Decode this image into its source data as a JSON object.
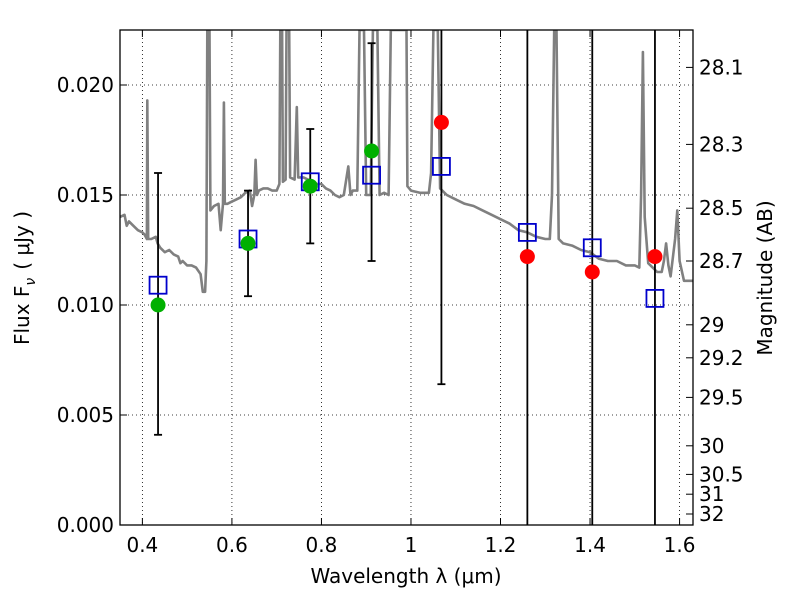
{
  "chart_data": {
    "type": "scatter",
    "xlabel": "Wavelength  λ (μm)",
    "ylabel": "Flux  F",
    "ylabel_sub": "ν",
    "ylabel_unit": "( μJy )",
    "ylabel_right": "Magnitude (AB)",
    "xlim": [
      0.35,
      1.63
    ],
    "ylim": [
      0.0,
      0.0225
    ],
    "grid": true,
    "x_ticks": [
      0.4,
      0.6,
      0.8,
      1.0,
      1.2,
      1.4,
      1.6
    ],
    "x_tick_labels": [
      "0.4",
      "0.6",
      "0.8",
      "1",
      "1.2",
      "1.4",
      "1.6"
    ],
    "y_ticks": [
      0.0,
      0.005,
      0.01,
      0.015,
      0.02
    ],
    "y_tick_labels": [
      "0.000",
      "0.005",
      "0.010",
      "0.015",
      "0.020"
    ],
    "right_ticks": [
      {
        "label": "28.1",
        "flux": 0.0208
      },
      {
        "label": "28.3",
        "flux": 0.0173
      },
      {
        "label": "28.5",
        "flux": 0.0144
      },
      {
        "label": "28.7",
        "flux": 0.012
      },
      {
        "label": "29",
        "flux": 0.0091
      },
      {
        "label": "29.2",
        "flux": 0.0076
      },
      {
        "label": "29.5",
        "flux": 0.0058
      },
      {
        "label": "30",
        "flux": 0.0036
      },
      {
        "label": "30.5",
        "flux": 0.0023
      },
      {
        "label": "31",
        "flux": 0.0014
      },
      {
        "label": "32",
        "flux": 0.0005
      }
    ],
    "series": [
      {
        "kind": "spectrum",
        "color": "#808080",
        "points": [
          [
            0.35,
            0.014
          ],
          [
            0.36,
            0.0141
          ],
          [
            0.365,
            0.0136
          ],
          [
            0.37,
            0.0138
          ],
          [
            0.38,
            0.0136
          ],
          [
            0.39,
            0.0134
          ],
          [
            0.4,
            0.0133
          ],
          [
            0.405,
            0.0132
          ],
          [
            0.41,
            0.013
          ],
          [
            0.411,
            0.0193
          ],
          [
            0.413,
            0.013
          ],
          [
            0.42,
            0.013
          ],
          [
            0.43,
            0.0131
          ],
          [
            0.434,
            0.0128
          ],
          [
            0.44,
            0.0126
          ],
          [
            0.45,
            0.0124
          ],
          [
            0.46,
            0.0125
          ],
          [
            0.47,
            0.0123
          ],
          [
            0.48,
            0.0122
          ],
          [
            0.485,
            0.0119
          ],
          [
            0.49,
            0.012
          ],
          [
            0.5,
            0.0118
          ],
          [
            0.51,
            0.0118
          ],
          [
            0.52,
            0.0117
          ],
          [
            0.53,
            0.0114
          ],
          [
            0.535,
            0.0106
          ],
          [
            0.54,
            0.0106
          ],
          [
            0.543,
            0.012
          ],
          [
            0.545,
            0.0225
          ],
          [
            0.55,
            0.0225
          ],
          [
            0.552,
            0.0143
          ],
          [
            0.56,
            0.0145
          ],
          [
            0.57,
            0.0146
          ],
          [
            0.575,
            0.0134
          ],
          [
            0.58,
            0.0146
          ],
          [
            0.582,
            0.0192
          ],
          [
            0.584,
            0.0146
          ],
          [
            0.59,
            0.0146
          ],
          [
            0.6,
            0.0147
          ],
          [
            0.61,
            0.0148
          ],
          [
            0.62,
            0.0149
          ],
          [
            0.63,
            0.0151
          ],
          [
            0.64,
            0.0152
          ],
          [
            0.645,
            0.0145
          ],
          [
            0.65,
            0.015
          ],
          [
            0.653,
            0.0166
          ],
          [
            0.656,
            0.015
          ],
          [
            0.66,
            0.0152
          ],
          [
            0.67,
            0.0153
          ],
          [
            0.68,
            0.0153
          ],
          [
            0.69,
            0.0152
          ],
          [
            0.7,
            0.0152
          ],
          [
            0.706,
            0.0155
          ],
          [
            0.708,
            0.0225
          ],
          [
            0.712,
            0.0225
          ],
          [
            0.714,
            0.0156
          ],
          [
            0.72,
            0.0157
          ],
          [
            0.722,
            0.0225
          ],
          [
            0.728,
            0.0225
          ],
          [
            0.73,
            0.0158
          ],
          [
            0.74,
            0.0157
          ],
          [
            0.745,
            0.019
          ],
          [
            0.748,
            0.0158
          ],
          [
            0.76,
            0.0158
          ],
          [
            0.77,
            0.0157
          ],
          [
            0.78,
            0.0156
          ],
          [
            0.79,
            0.0155
          ],
          [
            0.8,
            0.0155
          ],
          [
            0.81,
            0.0153
          ],
          [
            0.82,
            0.0152
          ],
          [
            0.83,
            0.015
          ],
          [
            0.84,
            0.0149
          ],
          [
            0.85,
            0.015
          ],
          [
            0.86,
            0.0163
          ],
          [
            0.865,
            0.015
          ],
          [
            0.87,
            0.0152
          ],
          [
            0.88,
            0.0152
          ],
          [
            0.885,
            0.0225
          ],
          [
            0.895,
            0.0225
          ],
          [
            0.9,
            0.015
          ],
          [
            0.91,
            0.015
          ],
          [
            0.915,
            0.0225
          ],
          [
            0.925,
            0.0225
          ],
          [
            0.93,
            0.015
          ],
          [
            0.94,
            0.0151
          ],
          [
            0.95,
            0.015
          ],
          [
            0.955,
            0.0225
          ],
          [
            0.99,
            0.0225
          ],
          [
            0.992,
            0.0154
          ],
          [
            1.0,
            0.0152
          ],
          [
            1.02,
            0.0151
          ],
          [
            1.04,
            0.0151
          ],
          [
            1.045,
            0.016
          ],
          [
            1.05,
            0.0225
          ],
          [
            1.06,
            0.0225
          ],
          [
            1.065,
            0.0153
          ],
          [
            1.08,
            0.015
          ],
          [
            1.1,
            0.0148
          ],
          [
            1.12,
            0.0146
          ],
          [
            1.14,
            0.0145
          ],
          [
            1.16,
            0.0143
          ],
          [
            1.18,
            0.0141
          ],
          [
            1.2,
            0.0139
          ],
          [
            1.22,
            0.0137
          ],
          [
            1.24,
            0.0134
          ],
          [
            1.26,
            0.0133
          ],
          [
            1.28,
            0.0131
          ],
          [
            1.3,
            0.013
          ],
          [
            1.31,
            0.013
          ],
          [
            1.315,
            0.015
          ],
          [
            1.32,
            0.0225
          ],
          [
            1.325,
            0.0225
          ],
          [
            1.33,
            0.013
          ],
          [
            1.34,
            0.0128
          ],
          [
            1.36,
            0.0127
          ],
          [
            1.38,
            0.0125
          ],
          [
            1.4,
            0.0124
          ],
          [
            1.42,
            0.0121
          ],
          [
            1.44,
            0.012
          ],
          [
            1.46,
            0.012
          ],
          [
            1.48,
            0.0118
          ],
          [
            1.5,
            0.0118
          ],
          [
            1.51,
            0.0117
          ],
          [
            1.514,
            0.015
          ],
          [
            1.518,
            0.0215
          ],
          [
            1.522,
            0.014
          ],
          [
            1.53,
            0.0119
          ],
          [
            1.54,
            0.0117
          ],
          [
            1.55,
            0.0115
          ],
          [
            1.56,
            0.0115
          ],
          [
            1.565,
            0.012
          ],
          [
            1.57,
            0.0128
          ],
          [
            1.575,
            0.0118
          ],
          [
            1.58,
            0.0113
          ],
          [
            1.59,
            0.013
          ],
          [
            1.595,
            0.0143
          ],
          [
            1.6,
            0.012
          ],
          [
            1.61,
            0.0111
          ],
          [
            1.62,
            0.0111
          ],
          [
            1.63,
            0.0111
          ]
        ]
      },
      {
        "kind": "observed",
        "name_hidden": true,
        "color": "#000000",
        "points": [
          {
            "x": 0.435,
            "y": 0.01,
            "ylo": 0.0041,
            "yhi": 0.016,
            "marker_color": "#00b000"
          },
          {
            "x": 0.636,
            "y": 0.0128,
            "ylo": 0.0104,
            "yhi": 0.0152,
            "marker_color": "#00b000"
          },
          {
            "x": 0.775,
            "y": 0.0154,
            "ylo": 0.0128,
            "yhi": 0.018,
            "marker_color": "#00b000"
          },
          {
            "x": 0.912,
            "y": 0.017,
            "ylo": 0.012,
            "yhi": 0.0219,
            "marker_color": "#00b000"
          },
          {
            "x": 1.068,
            "y": 0.0183,
            "ylo": 0.0064,
            "yhi": 0.0225,
            "marker_color": "#ff0000"
          },
          {
            "x": 1.26,
            "y": 0.0122,
            "ylo": 0.0,
            "yhi": 0.0225,
            "marker_color": "#ff0000"
          },
          {
            "x": 1.405,
            "y": 0.0115,
            "ylo": 0.0,
            "yhi": 0.0225,
            "marker_color": "#ff0000"
          },
          {
            "x": 1.545,
            "y": 0.0122,
            "ylo": 0.0,
            "yhi": 0.0225,
            "marker_color": "#ff0000"
          }
        ]
      },
      {
        "kind": "model",
        "color": "#0000cc",
        "points": [
          {
            "x": 0.435,
            "y": 0.0109
          },
          {
            "x": 0.636,
            "y": 0.013
          },
          {
            "x": 0.775,
            "y": 0.0156
          },
          {
            "x": 0.912,
            "y": 0.0159
          },
          {
            "x": 1.068,
            "y": 0.0163
          },
          {
            "x": 1.26,
            "y": 0.0133
          },
          {
            "x": 1.405,
            "y": 0.0126
          },
          {
            "x": 1.545,
            "y": 0.0103
          }
        ]
      }
    ]
  }
}
